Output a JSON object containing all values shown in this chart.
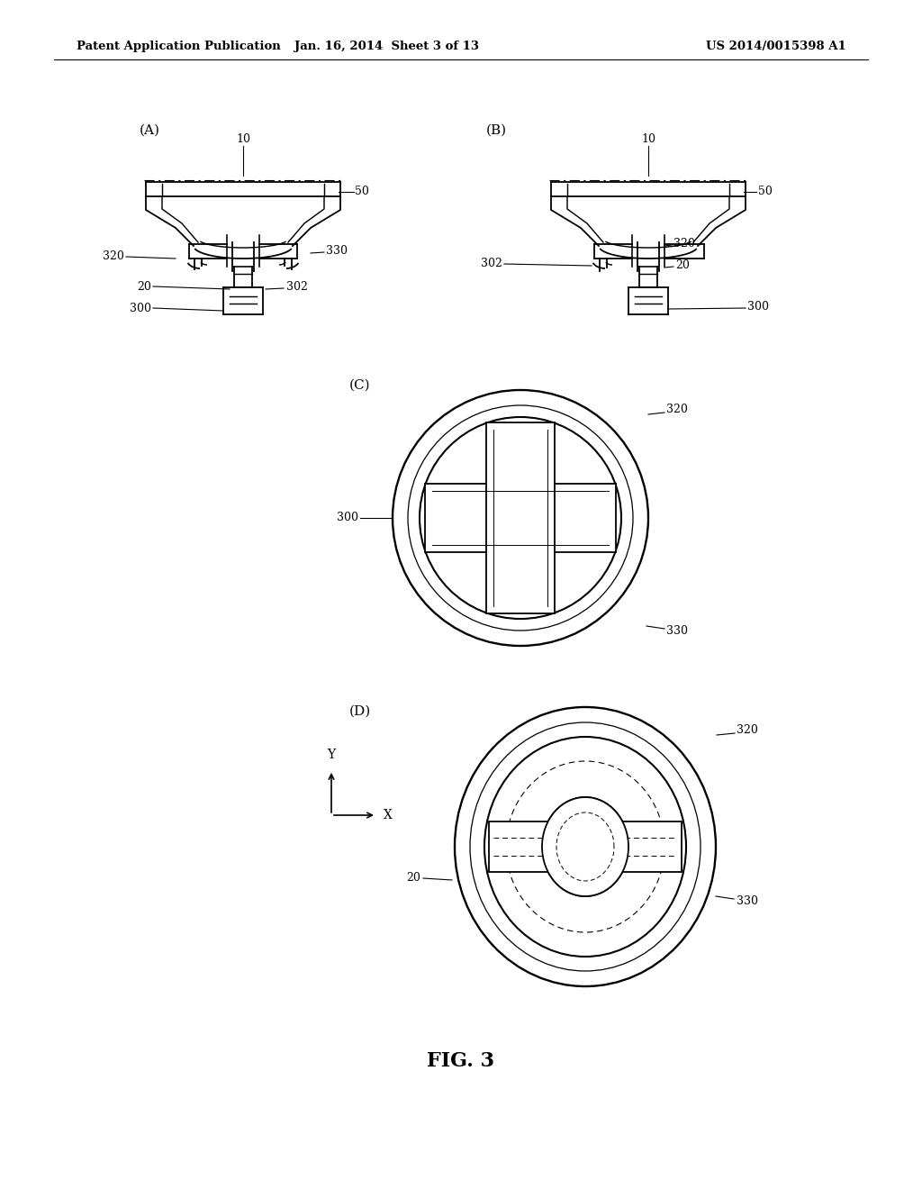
{
  "header_left": "Patent Application Publication",
  "header_center": "Jan. 16, 2014  Sheet 3 of 13",
  "header_right": "US 2014/0015398 A1",
  "figure_label": "FIG. 3",
  "bg_color": "#ffffff",
  "line_color": "#000000",
  "label_A": "(A)",
  "label_B": "(B)",
  "label_C": "(C)",
  "label_D": "(D)",
  "lw": 1.3
}
